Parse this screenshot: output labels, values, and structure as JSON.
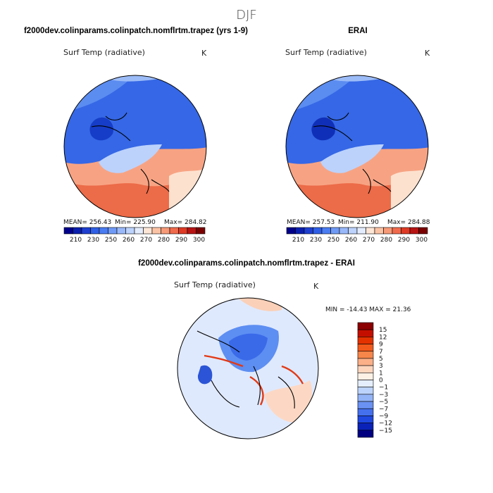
{
  "figure": {
    "title": "DJF"
  },
  "chart_data": [
    {
      "type": "map",
      "title": "f2000dev.colinparams.colinpatch.nomflrtm.trapez (yrs 1-9)",
      "variable": "Surf Temp (radiative)",
      "units": "K",
      "projection": "north-polar-stereographic",
      "stats": {
        "mean": "MEAN= 256.43",
        "min": "Min= 225.90",
        "max": "Max= 284.82"
      },
      "colorbar": {
        "orientation": "horizontal",
        "tick_labels": [
          "210",
          "230",
          "250",
          "260",
          "270",
          "280",
          "290",
          "300"
        ],
        "colors": [
          "#00008b",
          "#0a1fae",
          "#1f3fd0",
          "#2f5fe6",
          "#4a7cf2",
          "#6f9af6",
          "#98b8fa",
          "#bdd3fc",
          "#e3ecfd",
          "#fde6d6",
          "#fbc3a5",
          "#f79a78",
          "#f06a4c",
          "#de3a25",
          "#b81414",
          "#7a0000"
        ]
      }
    },
    {
      "type": "map",
      "title": "ERAI",
      "variable": "Surf Temp (radiative)",
      "units": "K",
      "projection": "north-polar-stereographic",
      "stats": {
        "mean": "MEAN= 257.53",
        "min": "Min= 211.90",
        "max": "Max= 284.88"
      },
      "colorbar": {
        "orientation": "horizontal",
        "tick_labels": [
          "210",
          "230",
          "250",
          "260",
          "270",
          "280",
          "290",
          "300"
        ],
        "colors": [
          "#00008b",
          "#0a1fae",
          "#1f3fd0",
          "#2f5fe6",
          "#4a7cf2",
          "#6f9af6",
          "#98b8fa",
          "#bdd3fc",
          "#e3ecfd",
          "#fde6d6",
          "#fbc3a5",
          "#f79a78",
          "#f06a4c",
          "#de3a25",
          "#b81414",
          "#7a0000"
        ]
      }
    },
    {
      "type": "map",
      "title": "f2000dev.colinparams.colinpatch.nomflrtm.trapez - ERAI",
      "variable": "Surf Temp (radiative)",
      "units": "K",
      "projection": "north-polar-stereographic",
      "stats": {
        "min_max": "MIN = -14.43 MAX =  21.36"
      },
      "colorbar": {
        "orientation": "vertical",
        "tick_labels": [
          "15",
          "12",
          "9",
          "7",
          "5",
          "3",
          "1",
          "0",
          "−1",
          "−3",
          "−5",
          "−7",
          "−9",
          "−12",
          "−15"
        ],
        "colors": [
          "#8b0000",
          "#c40f00",
          "#e33200",
          "#f25a1c",
          "#f7864a",
          "#fbb088",
          "#fdd5bd",
          "#fdf0e4",
          "#e4eefd",
          "#bcd3fb",
          "#93b4f7",
          "#6a92f3",
          "#4470ee",
          "#1f48e0",
          "#0a22b8",
          "#000080"
        ]
      }
    }
  ]
}
